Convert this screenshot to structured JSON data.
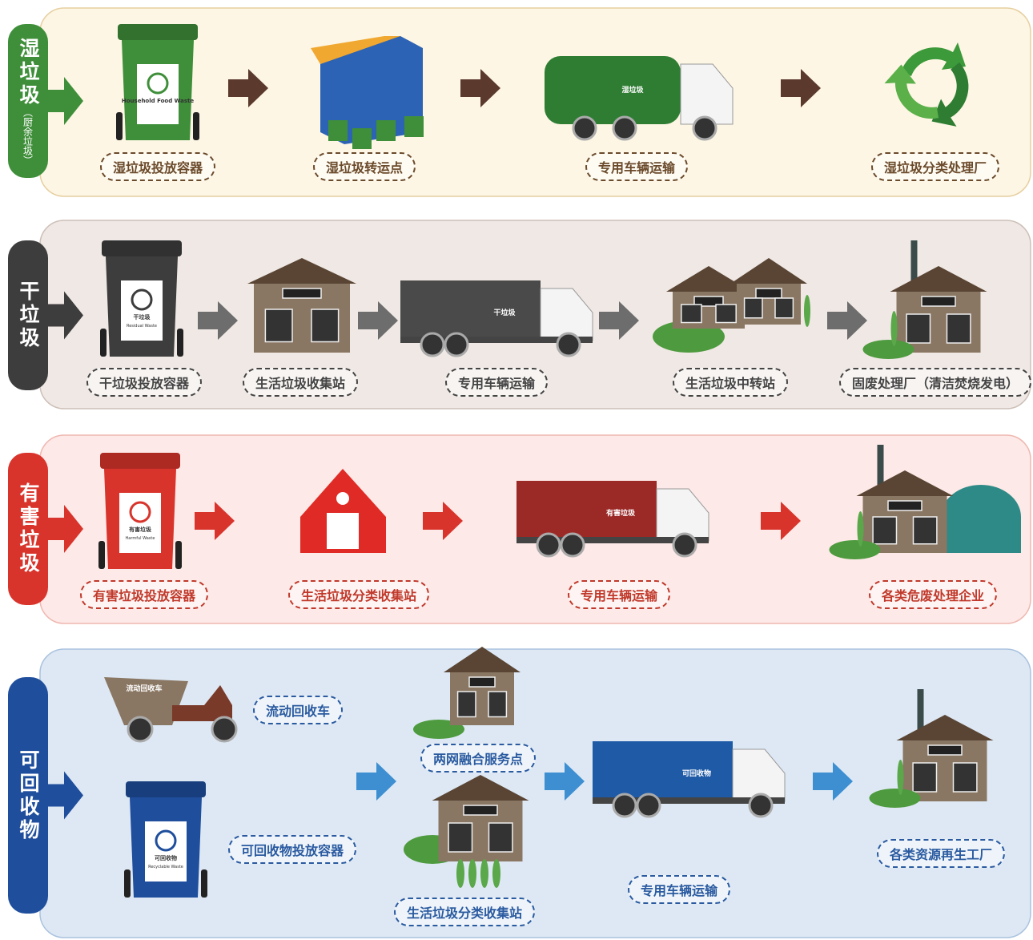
{
  "rows": [
    {
      "category": "湿垃圾",
      "note": "（厨余垃圾）",
      "bin_label": "Household Food Waste",
      "truck_label": "湿垃圾",
      "steps": [
        "湿垃圾投放容器",
        "湿垃圾转运点",
        "专用车辆运输",
        "湿垃圾分类处理厂"
      ]
    },
    {
      "category": "干垃圾",
      "bin_label": "干垃圾",
      "bin_label_en": "Residual Waste",
      "truck_label": "干垃圾",
      "steps": [
        "干垃圾投放容器",
        "生活垃圾收集站",
        "专用车辆运输",
        "生活垃圾中转站",
        "固废处理厂（清洁焚烧发电）"
      ]
    },
    {
      "category": "有害垃圾",
      "bin_label": "有害垃圾",
      "bin_label_en": "Harmful Waste",
      "truck_label": "有害垃圾",
      "steps": [
        "有害垃圾投放容器",
        "生活垃圾分类收集站",
        "专用车辆运输",
        "各类危废处理企业"
      ]
    },
    {
      "category": "可回收物",
      "bin_label": "可回收物",
      "bin_label_en": "Recyclable Waste",
      "truck_label": "可回收物",
      "tricycle_label": "流动回收车",
      "steps": [
        "流动回收车",
        "可回收物投放容器",
        "两网融合服务点",
        "生活垃圾分类收集站",
        "专用车辆运输",
        "各类资源再生工厂"
      ]
    }
  ]
}
